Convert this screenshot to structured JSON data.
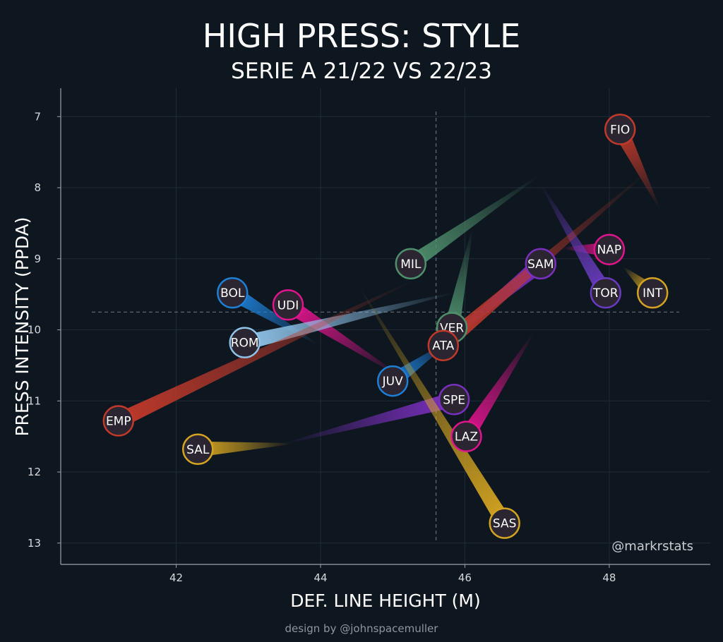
{
  "chart_data": {
    "type": "scatter",
    "title": "HIGH PRESS: STYLE",
    "subtitle": "SERIE A 21/22 VS 22/23",
    "xlabel": "DEF. LINE HEIGHT (M)",
    "ylabel": "PRESS INTENSITY (PPDA)",
    "xlim": [
      40.4,
      49.4
    ],
    "ylim": [
      6.6,
      13.3
    ],
    "y_inverted": true,
    "x_ticks": [
      42,
      44,
      46,
      48
    ],
    "y_ticks": [
      7,
      8,
      9,
      10,
      11,
      12,
      13
    ],
    "grid": true,
    "reference_lines": {
      "x": 45.6,
      "y": 9.75
    },
    "watermark": "@markrstats",
    "credit": "design by @johnspacemuller",
    "teams": [
      {
        "label": "FIO",
        "color": "#c0392b",
        "x_2122": 48.7,
        "y_2122": 8.3,
        "x_2223": 48.15,
        "y_2223": 7.18
      },
      {
        "label": "NAP",
        "color": "#e0148c",
        "x_2122": 47.35,
        "y_2122": 8.85,
        "x_2223": 48.0,
        "y_2223": 8.87
      },
      {
        "label": "SAM",
        "color": "#7b2fbf",
        "x_2122": 45.45,
        "y_2122": 10.4,
        "x_2223": 47.05,
        "y_2223": 9.07
      },
      {
        "label": "TOR",
        "color": "#6a3bc0",
        "x_2122": 47.05,
        "y_2122": 7.95,
        "x_2223": 47.95,
        "y_2223": 9.48
      },
      {
        "label": "INT",
        "color": "#d4a421",
        "x_2122": 48.2,
        "y_2122": 9.12,
        "x_2223": 48.6,
        "y_2223": 9.48
      },
      {
        "label": "MIL",
        "color": "#4f8f6c",
        "x_2122": 47.0,
        "y_2122": 7.85,
        "x_2223": 45.25,
        "y_2223": 9.07
      },
      {
        "label": "VER",
        "color": "#4f8f6c",
        "x_2122": 46.1,
        "y_2122": 8.6,
        "x_2223": 45.82,
        "y_2223": 9.97
      },
      {
        "label": "ATA",
        "color": "#c0392b",
        "x_2122": 48.5,
        "y_2122": 7.8,
        "x_2223": 45.7,
        "y_2223": 10.22
      },
      {
        "label": "BOL",
        "color": "#1e7fd6",
        "x_2122": 43.95,
        "y_2122": 10.2,
        "x_2223": 42.78,
        "y_2223": 9.48
      },
      {
        "label": "UDI",
        "color": "#e0148c",
        "x_2122": 45.1,
        "y_2122": 10.65,
        "x_2223": 43.55,
        "y_2223": 9.65
      },
      {
        "label": "ROM",
        "color": "#8fc3e8",
        "x_2122": 45.85,
        "y_2122": 9.48,
        "x_2223": 42.95,
        "y_2223": 10.18
      },
      {
        "label": "JUV",
        "color": "#1e7fd6",
        "x_2122": 45.8,
        "y_2122": 10.15,
        "x_2223": 45.0,
        "y_2223": 10.72
      },
      {
        "label": "EMP",
        "color": "#c0392b",
        "x_2122": 45.3,
        "y_2122": 9.3,
        "x_2223": 41.2,
        "y_2223": 11.28
      },
      {
        "label": "SPE",
        "color": "#7b2fbf",
        "x_2122": 43.5,
        "y_2122": 11.6,
        "x_2223": 45.85,
        "y_2223": 10.98
      },
      {
        "label": "LAZ",
        "color": "#e0148c",
        "x_2122": 46.95,
        "y_2122": 10.05,
        "x_2223": 46.02,
        "y_2223": 11.5
      },
      {
        "label": "SAL",
        "color": "#d4a421",
        "x_2122": 43.6,
        "y_2122": 11.6,
        "x_2223": 42.3,
        "y_2223": 11.68
      },
      {
        "label": "SAS",
        "color": "#d4a421",
        "x_2122": 44.55,
        "y_2122": 9.42,
        "x_2223": 46.55,
        "y_2223": 12.72
      }
    ]
  }
}
